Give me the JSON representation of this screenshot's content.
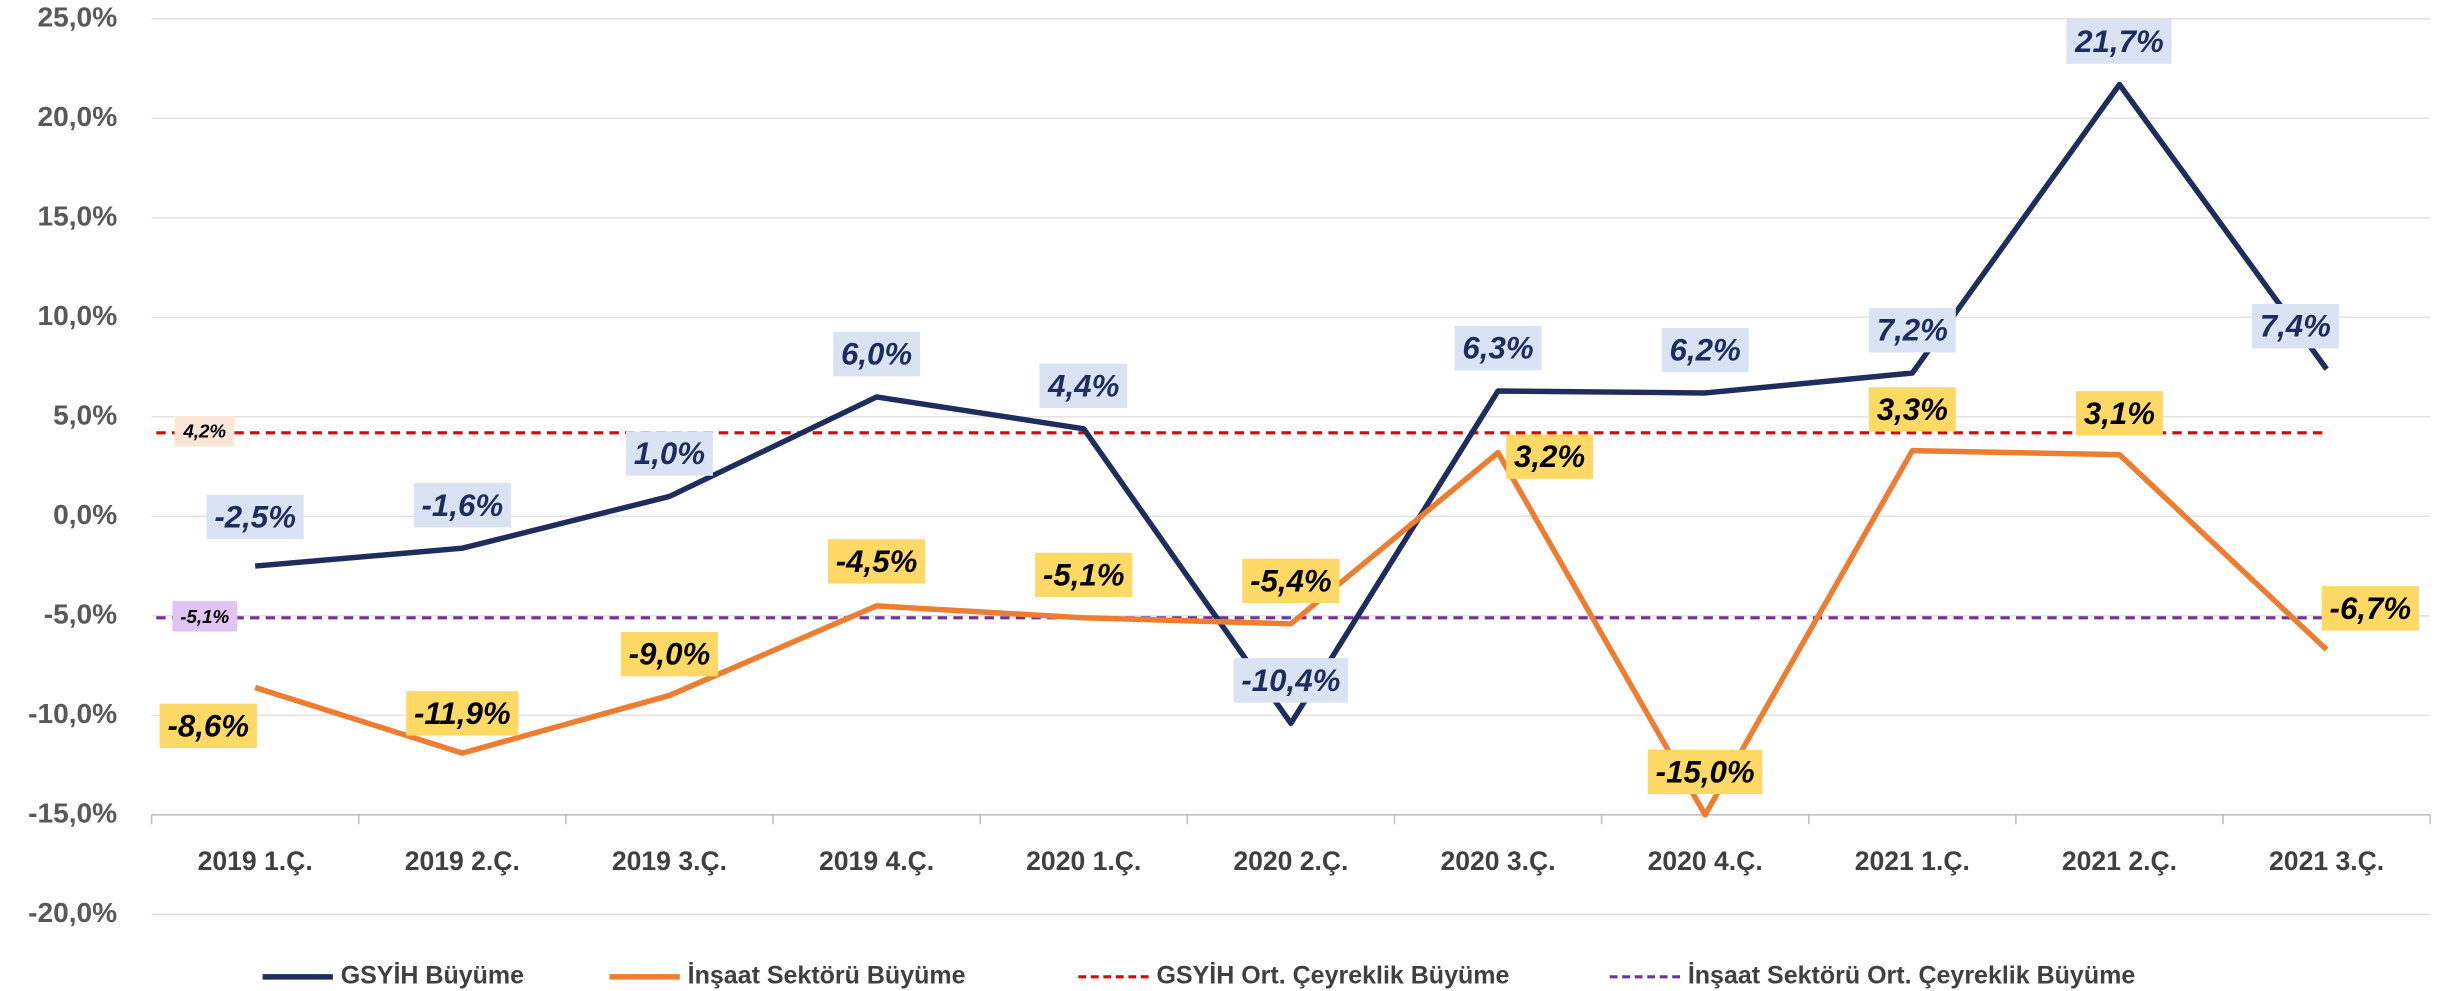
{
  "chart_data": {
    "type": "line",
    "categories": [
      "2019 1.Ç.",
      "2019 2.Ç.",
      "2019 3.Ç.",
      "2019 4.Ç.",
      "2020 1.Ç.",
      "2020 2.Ç.",
      "2020 3.Ç.",
      "2020 4.Ç.",
      "2021 1.Ç.",
      "2021 2.Ç.",
      "2021 3.Ç."
    ],
    "series": [
      {
        "name": "GSYİH Büyüme",
        "color": "#1f2d5c",
        "label_bg": "#dae3f3",
        "label_color": "#1f2d5c",
        "values": [
          -2.5,
          -1.6,
          1.0,
          6.0,
          4.4,
          -10.4,
          6.3,
          6.2,
          7.2,
          21.7,
          7.4
        ],
        "value_labels": [
          "-2,5%",
          "-1,6%",
          "1,0%",
          "6,0%",
          "4,4%",
          "-10,4%",
          "6,3%",
          "6,2%",
          "7,2%",
          "21,7%",
          "7,4%"
        ]
      },
      {
        "name": "İnşaat Sektörü Büyüme",
        "color": "#ed7d31",
        "label_bg": "#ffd966",
        "label_color": "#000000",
        "values": [
          -8.6,
          -11.9,
          -9.0,
          -4.5,
          -5.1,
          -5.4,
          3.2,
          -15.0,
          3.3,
          3.1,
          -6.7
        ],
        "value_labels": [
          "-8,6%",
          "-11,9%",
          "-9,0%",
          "-4,5%",
          "-5,1%",
          "-5,4%",
          "3,2%",
          "-15,0%",
          "3,3%",
          "3,1%",
          "-6,7%"
        ]
      }
    ],
    "reference_lines": [
      {
        "name": "GSYİH Ort. Çeyreklik Büyüme",
        "color": "#e00000",
        "label_bg": "#fbe5d6",
        "value": 4.2,
        "value_label": "4,2%"
      },
      {
        "name": "İnşaat Sektörü Ort. Çeyreklik Büyüme",
        "color": "#7030a0",
        "label_bg": "#e2c4f2",
        "value": -5.1,
        "value_label": "-5,1%"
      }
    ],
    "ylim": [
      -20,
      25
    ],
    "yticks": [
      {
        "value": -20,
        "label": "-20,0%"
      },
      {
        "value": -15,
        "label": "-15,0%"
      },
      {
        "value": -10,
        "label": "-10,0%"
      },
      {
        "value": -5,
        "label": "-5,0%"
      },
      {
        "value": 0,
        "label": "0,0%"
      },
      {
        "value": 5,
        "label": "5,0%"
      },
      {
        "value": 10,
        "label": "10,0%"
      },
      {
        "value": 15,
        "label": "15,0%"
      },
      {
        "value": 20,
        "label": "20,0%"
      },
      {
        "value": 25,
        "label": "25,0%"
      }
    ],
    "grid": true,
    "legend": "bottom"
  }
}
